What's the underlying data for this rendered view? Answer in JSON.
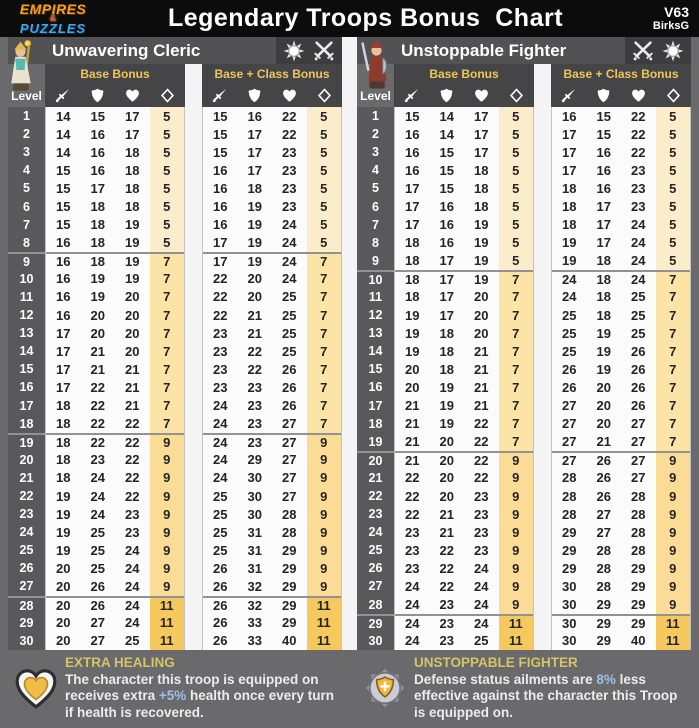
{
  "titlebar": {
    "logo_top": "EMPIRES",
    "logo_amp": "&",
    "logo_bottom": "PUZZLES",
    "title": "Legendary Troops Bonus  Chart",
    "version": "V63",
    "author": "BirksG"
  },
  "columns": {
    "level_label": "Level",
    "base_label": "Base Bonus",
    "base_class_label": "Base + Class Bonus",
    "stat_icons": [
      "sword-icon",
      "shield-icon",
      "heart-icon",
      "mana-diamond-icon"
    ],
    "stat_keys": [
      "attack",
      "defense",
      "health",
      "mana"
    ]
  },
  "colors": {
    "accent_gold": "#eec658",
    "footer_heading_gold": "#d4c468",
    "highlight_blue": "#9cc0e8",
    "mana_5": "#fbeccb",
    "mana_7": "#fce3a6",
    "mana_9": "#fbdc96",
    "mana_11": "#f6c95f"
  },
  "chart_data": {
    "type": "table",
    "title": "Legendary Troops Bonus  Chart",
    "tables": [
      {
        "name": "Unwavering Cleric",
        "portrait": "cleric-portrait",
        "icons": [
          "rosette-badge-icon",
          "crossed-swords-icon"
        ],
        "column_groups": [
          "Base Bonus",
          "Base + Class Bonus"
        ],
        "columns": [
          "attack",
          "defense",
          "health",
          "mana"
        ],
        "rows": [
          {
            "l": 1,
            "b": [
              14,
              15,
              17,
              5
            ],
            "c": [
              15,
              16,
              22,
              5
            ]
          },
          {
            "l": 2,
            "b": [
              14,
              16,
              17,
              5
            ],
            "c": [
              15,
              17,
              22,
              5
            ]
          },
          {
            "l": 3,
            "b": [
              14,
              16,
              18,
              5
            ],
            "c": [
              15,
              17,
              23,
              5
            ]
          },
          {
            "l": 4,
            "b": [
              15,
              16,
              18,
              5
            ],
            "c": [
              16,
              17,
              23,
              5
            ]
          },
          {
            "l": 5,
            "b": [
              15,
              17,
              18,
              5
            ],
            "c": [
              16,
              18,
              23,
              5
            ]
          },
          {
            "l": 6,
            "b": [
              15,
              18,
              18,
              5
            ],
            "c": [
              16,
              19,
              23,
              5
            ]
          },
          {
            "l": 7,
            "b": [
              15,
              18,
              19,
              5
            ],
            "c": [
              16,
              19,
              24,
              5
            ]
          },
          {
            "l": 8,
            "b": [
              16,
              18,
              19,
              5
            ],
            "c": [
              17,
              19,
              24,
              5
            ]
          },
          {
            "l": 9,
            "b": [
              16,
              18,
              19,
              7
            ],
            "c": [
              17,
              19,
              24,
              7
            ]
          },
          {
            "l": 10,
            "b": [
              16,
              19,
              19,
              7
            ],
            "c": [
              22,
              20,
              24,
              7
            ]
          },
          {
            "l": 11,
            "b": [
              16,
              19,
              20,
              7
            ],
            "c": [
              22,
              20,
              25,
              7
            ]
          },
          {
            "l": 12,
            "b": [
              16,
              20,
              20,
              7
            ],
            "c": [
              22,
              21,
              25,
              7
            ]
          },
          {
            "l": 13,
            "b": [
              17,
              20,
              20,
              7
            ],
            "c": [
              23,
              21,
              25,
              7
            ]
          },
          {
            "l": 14,
            "b": [
              17,
              21,
              20,
              7
            ],
            "c": [
              23,
              22,
              25,
              7
            ]
          },
          {
            "l": 15,
            "b": [
              17,
              21,
              21,
              7
            ],
            "c": [
              23,
              22,
              26,
              7
            ]
          },
          {
            "l": 16,
            "b": [
              17,
              22,
              21,
              7
            ],
            "c": [
              23,
              23,
              26,
              7
            ]
          },
          {
            "l": 17,
            "b": [
              18,
              22,
              21,
              7
            ],
            "c": [
              24,
              23,
              26,
              7
            ]
          },
          {
            "l": 18,
            "b": [
              18,
              22,
              22,
              7
            ],
            "c": [
              24,
              23,
              27,
              7
            ]
          },
          {
            "l": 19,
            "b": [
              18,
              22,
              22,
              9
            ],
            "c": [
              24,
              23,
              27,
              9
            ]
          },
          {
            "l": 20,
            "b": [
              18,
              23,
              22,
              9
            ],
            "c": [
              24,
              29,
              27,
              9
            ]
          },
          {
            "l": 21,
            "b": [
              18,
              24,
              22,
              9
            ],
            "c": [
              24,
              30,
              27,
              9
            ]
          },
          {
            "l": 22,
            "b": [
              19,
              24,
              22,
              9
            ],
            "c": [
              25,
              30,
              27,
              9
            ]
          },
          {
            "l": 23,
            "b": [
              19,
              24,
              23,
              9
            ],
            "c": [
              25,
              30,
              28,
              9
            ]
          },
          {
            "l": 24,
            "b": [
              19,
              25,
              23,
              9
            ],
            "c": [
              25,
              31,
              28,
              9
            ]
          },
          {
            "l": 25,
            "b": [
              19,
              25,
              24,
              9
            ],
            "c": [
              25,
              31,
              29,
              9
            ]
          },
          {
            "l": 26,
            "b": [
              20,
              25,
              24,
              9
            ],
            "c": [
              26,
              31,
              29,
              9
            ]
          },
          {
            "l": 27,
            "b": [
              20,
              26,
              24,
              9
            ],
            "c": [
              26,
              32,
              29,
              9
            ]
          },
          {
            "l": 28,
            "b": [
              20,
              26,
              24,
              11
            ],
            "c": [
              26,
              32,
              29,
              11
            ]
          },
          {
            "l": 29,
            "b": [
              20,
              27,
              24,
              11
            ],
            "c": [
              26,
              33,
              29,
              11
            ]
          },
          {
            "l": 30,
            "b": [
              20,
              27,
              25,
              11
            ],
            "c": [
              26,
              33,
              40,
              11
            ]
          }
        ],
        "footer": {
          "title": "EXTRA HEALING",
          "parts": [
            {
              "t": "The character this troop is equipped on receives extra "
            },
            {
              "t": "+5%",
              "hl": true
            },
            {
              "t": " health once every turn if health is recovered."
            }
          ]
        }
      },
      {
        "name": "Unstoppable Fighter",
        "portrait": "fighter-portrait",
        "icons": [
          "crossed-swords-icon",
          "rosette-badge-icon"
        ],
        "column_groups": [
          "Base Bonus",
          "Base + Class Bonus"
        ],
        "columns": [
          "attack",
          "defense",
          "health",
          "mana"
        ],
        "rows": [
          {
            "l": 1,
            "b": [
              15,
              14,
              17,
              5
            ],
            "c": [
              16,
              15,
              22,
              5
            ]
          },
          {
            "l": 2,
            "b": [
              16,
              14,
              17,
              5
            ],
            "c": [
              17,
              15,
              22,
              5
            ]
          },
          {
            "l": 3,
            "b": [
              16,
              15,
              17,
              5
            ],
            "c": [
              17,
              16,
              22,
              5
            ]
          },
          {
            "l": 4,
            "b": [
              16,
              15,
              18,
              5
            ],
            "c": [
              17,
              16,
              23,
              5
            ]
          },
          {
            "l": 5,
            "b": [
              17,
              15,
              18,
              5
            ],
            "c": [
              18,
              16,
              23,
              5
            ]
          },
          {
            "l": 6,
            "b": [
              17,
              16,
              18,
              5
            ],
            "c": [
              18,
              17,
              23,
              5
            ]
          },
          {
            "l": 7,
            "b": [
              17,
              16,
              19,
              5
            ],
            "c": [
              18,
              17,
              24,
              5
            ]
          },
          {
            "l": 8,
            "b": [
              18,
              16,
              19,
              5
            ],
            "c": [
              19,
              17,
              24,
              5
            ]
          },
          {
            "l": 9,
            "b": [
              18,
              17,
              19,
              5
            ],
            "c": [
              19,
              18,
              24,
              5
            ]
          },
          {
            "l": 10,
            "b": [
              18,
              17,
              19,
              7
            ],
            "c": [
              24,
              18,
              24,
              7
            ]
          },
          {
            "l": 11,
            "b": [
              18,
              17,
              20,
              7
            ],
            "c": [
              24,
              18,
              25,
              7
            ]
          },
          {
            "l": 12,
            "b": [
              19,
              17,
              20,
              7
            ],
            "c": [
              25,
              18,
              25,
              7
            ]
          },
          {
            "l": 13,
            "b": [
              19,
              18,
              20,
              7
            ],
            "c": [
              25,
              19,
              25,
              7
            ]
          },
          {
            "l": 14,
            "b": [
              19,
              18,
              21,
              7
            ],
            "c": [
              25,
              19,
              26,
              7
            ]
          },
          {
            "l": 15,
            "b": [
              20,
              18,
              21,
              7
            ],
            "c": [
              26,
              19,
              26,
              7
            ]
          },
          {
            "l": 16,
            "b": [
              20,
              19,
              21,
              7
            ],
            "c": [
              26,
              20,
              26,
              7
            ]
          },
          {
            "l": 17,
            "b": [
              21,
              19,
              21,
              7
            ],
            "c": [
              27,
              20,
              26,
              7
            ]
          },
          {
            "l": 18,
            "b": [
              21,
              19,
              22,
              7
            ],
            "c": [
              27,
              20,
              27,
              7
            ]
          },
          {
            "l": 19,
            "b": [
              21,
              20,
              22,
              7
            ],
            "c": [
              27,
              21,
              27,
              7
            ]
          },
          {
            "l": 20,
            "b": [
              21,
              20,
              22,
              9
            ],
            "c": [
              27,
              26,
              27,
              9
            ]
          },
          {
            "l": 21,
            "b": [
              22,
              20,
              22,
              9
            ],
            "c": [
              28,
              26,
              27,
              9
            ]
          },
          {
            "l": 22,
            "b": [
              22,
              20,
              23,
              9
            ],
            "c": [
              28,
              26,
              28,
              9
            ]
          },
          {
            "l": 23,
            "b": [
              22,
              21,
              23,
              9
            ],
            "c": [
              28,
              27,
              28,
              9
            ]
          },
          {
            "l": 24,
            "b": [
              23,
              21,
              23,
              9
            ],
            "c": [
              29,
              27,
              28,
              9
            ]
          },
          {
            "l": 25,
            "b": [
              23,
              22,
              23,
              9
            ],
            "c": [
              29,
              28,
              28,
              9
            ]
          },
          {
            "l": 26,
            "b": [
              23,
              22,
              24,
              9
            ],
            "c": [
              29,
              28,
              29,
              9
            ]
          },
          {
            "l": 27,
            "b": [
              24,
              22,
              24,
              9
            ],
            "c": [
              30,
              28,
              29,
              9
            ]
          },
          {
            "l": 28,
            "b": [
              24,
              23,
              24,
              9
            ],
            "c": [
              30,
              29,
              29,
              9
            ]
          },
          {
            "l": 29,
            "b": [
              24,
              23,
              24,
              11
            ],
            "c": [
              30,
              29,
              29,
              11
            ]
          },
          {
            "l": 30,
            "b": [
              24,
              23,
              25,
              11
            ],
            "c": [
              30,
              29,
              40,
              11
            ]
          }
        ],
        "footer": {
          "title": "UNSTOPPABLE FIGHTER",
          "parts": [
            {
              "t": "Defense status ailments are "
            },
            {
              "t": "8%",
              "hl": true
            },
            {
              "t": " less effective against the character this Troop is equipped on."
            }
          ]
        }
      }
    ]
  }
}
